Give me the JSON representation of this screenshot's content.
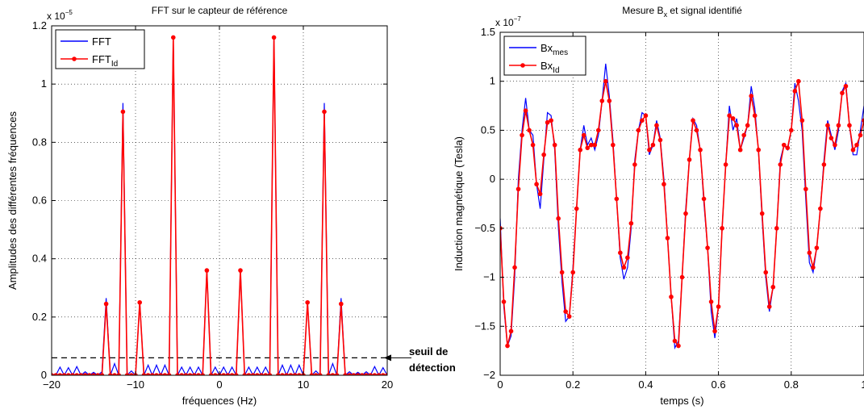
{
  "chart_data": [
    {
      "type": "line",
      "title": "FFT sur le capteur de référence",
      "xlabel": "fréquences (Hz)",
      "ylabel": "Amplitudes des différentes fréquences",
      "exponent_base": "x 10",
      "exponent_power": "−5",
      "xlim": [
        -20,
        20
      ],
      "ylim": [
        0,
        1.2
      ],
      "xticks": [
        -20,
        -10,
        0,
        10,
        20
      ],
      "xtick_labels": [
        "−20",
        "−10",
        "0",
        "10",
        "20"
      ],
      "yticks": [
        0,
        0.2,
        0.4,
        0.6,
        0.8,
        1,
        1.2
      ],
      "ytick_labels": [
        "0",
        "0.2",
        "0.4",
        "0.6",
        "0.8",
        "1",
        "1.2"
      ],
      "grid": true,
      "legend_position": "top-left",
      "threshold": {
        "y": 0.06,
        "label_line1": "seuil de",
        "label_line2": "détection"
      },
      "series": [
        {
          "name": "FFT",
          "color": "#0000ff",
          "marker": "none",
          "x": [
            -20,
            -19.5,
            -19,
            -18.5,
            -18,
            -17.5,
            -17,
            -16.5,
            -16,
            -15.5,
            -15,
            -14.5,
            -14,
            -13.5,
            -13,
            -12.5,
            -12,
            -11.5,
            -11,
            -10.5,
            -10,
            -9.5,
            -9,
            -8.5,
            -8,
            -7.5,
            -7,
            -6.5,
            -6,
            -5.5,
            -5,
            -4.5,
            -4,
            -3.5,
            -3,
            -2.5,
            -2,
            -1.5,
            -1,
            -0.5,
            0,
            0.5,
            1,
            1.5,
            2,
            2.5,
            3,
            3.5,
            4,
            4.5,
            5,
            5.5,
            6,
            6.5,
            7,
            7.5,
            8,
            8.5,
            9,
            9.5,
            10,
            10.5,
            11,
            11.5,
            12,
            12.5,
            13,
            13.5,
            14,
            14.5,
            15,
            15.5,
            16,
            16.5,
            17,
            17.5,
            18,
            18.5,
            19,
            19.5,
            20
          ],
          "y": [
            0.005,
            0,
            0.028,
            0,
            0.026,
            0,
            0.03,
            0,
            0.012,
            0,
            0.01,
            0,
            0.012,
            0.265,
            0,
            0.04,
            0,
            0.935,
            0,
            0.015,
            0,
            0.25,
            0,
            0.035,
            0,
            0.035,
            0,
            0.035,
            0,
            1.16,
            0,
            0.028,
            0,
            0.028,
            0,
            0.028,
            0,
            0.36,
            0,
            0.028,
            0,
            0.028,
            0,
            0.028,
            0,
            0.36,
            0,
            0.028,
            0,
            0.028,
            0,
            0.028,
            0,
            1.16,
            0,
            0.035,
            0,
            0.035,
            0,
            0.035,
            0,
            0.25,
            0,
            0.015,
            0,
            0.935,
            0,
            0.04,
            0,
            0.265,
            0,
            0.012,
            0,
            0.01,
            0,
            0.012,
            0,
            0.03,
            0,
            0.026,
            0
          ]
        },
        {
          "name": "FFT",
          "name_sub": "Id",
          "color": "#ff0000",
          "marker": "dot",
          "x": [
            -20,
            -19.5,
            -19,
            -18.5,
            -18,
            -17.5,
            -17,
            -16.5,
            -16,
            -15.5,
            -15,
            -14.5,
            -14,
            -13.5,
            -13,
            -12.5,
            -12,
            -11.5,
            -11,
            -10.5,
            -10,
            -9.5,
            -9,
            -8.5,
            -8,
            -7.5,
            -7,
            -6.5,
            -6,
            -5.5,
            -5,
            -4.5,
            -4,
            -3.5,
            -3,
            -2.5,
            -2,
            -1.5,
            -1,
            -0.5,
            0,
            0.5,
            1,
            1.5,
            2,
            2.5,
            3,
            3.5,
            4,
            4.5,
            5,
            5.5,
            6,
            6.5,
            7,
            7.5,
            8,
            8.5,
            9,
            9.5,
            10,
            10.5,
            11,
            11.5,
            12,
            12.5,
            13,
            13.5,
            14,
            14.5,
            15,
            15.5,
            16,
            16.5,
            17,
            17.5,
            18,
            18.5,
            19,
            19.5,
            20
          ],
          "y": [
            0,
            0,
            0,
            0,
            0,
            0,
            0,
            0,
            0,
            0,
            0,
            0,
            0,
            0.245,
            0,
            0,
            0,
            0.905,
            0,
            0,
            0,
            0.25,
            0,
            0,
            0,
            0,
            0,
            0,
            0,
            1.16,
            0,
            0,
            0,
            0,
            0,
            0,
            0,
            0.36,
            0,
            0,
            0,
            0,
            0,
            0,
            0,
            0.36,
            0,
            0,
            0,
            0,
            0,
            0,
            0,
            1.16,
            0,
            0,
            0,
            0,
            0,
            0,
            0,
            0.25,
            0,
            0,
            0,
            0.905,
            0,
            0,
            0,
            0.245,
            0,
            0,
            0,
            0,
            0,
            0,
            0,
            0,
            0,
            0,
            0
          ]
        }
      ]
    },
    {
      "type": "line",
      "title": "Mesure B",
      "title_sub": "x",
      "title_rest": " et signal identifié",
      "xlabel": "temps (s)",
      "ylabel": "Induction magnétique (Tesla)",
      "exponent_base": "x 10",
      "exponent_power": "−7",
      "xlim": [
        0,
        1
      ],
      "ylim": [
        -2,
        1.5
      ],
      "xticks": [
        0,
        0.2,
        0.4,
        0.6,
        0.8,
        1
      ],
      "xtick_labels": [
        "0",
        "0.2",
        "0.4",
        "0.6",
        "0.8",
        "1"
      ],
      "yticks": [
        -2,
        -1.5,
        -1,
        -0.5,
        0,
        0.5,
        1,
        1.5
      ],
      "ytick_labels": [
        "−2",
        "−1.5",
        "−1",
        "−0.5",
        "0",
        "0.5",
        "1",
        "1.5"
      ],
      "grid": true,
      "legend_position": "top-left",
      "series": [
        {
          "name": "Bx",
          "name_sub": "mes",
          "color": "#0000ff",
          "marker": "none",
          "x": [
            0,
            0.01,
            0.02,
            0.03,
            0.04,
            0.05,
            0.06,
            0.07,
            0.08,
            0.09,
            0.1,
            0.11,
            0.12,
            0.13,
            0.14,
            0.15,
            0.16,
            0.17,
            0.18,
            0.19,
            0.2,
            0.21,
            0.22,
            0.23,
            0.24,
            0.25,
            0.26,
            0.27,
            0.28,
            0.29,
            0.3,
            0.31,
            0.32,
            0.33,
            0.34,
            0.35,
            0.36,
            0.37,
            0.38,
            0.39,
            0.4,
            0.41,
            0.42,
            0.43,
            0.44,
            0.45,
            0.46,
            0.47,
            0.48,
            0.49,
            0.5,
            0.51,
            0.52,
            0.53,
            0.54,
            0.55,
            0.56,
            0.57,
            0.58,
            0.59,
            0.6,
            0.61,
            0.62,
            0.63,
            0.64,
            0.65,
            0.66,
            0.67,
            0.68,
            0.69,
            0.7,
            0.71,
            0.72,
            0.73,
            0.74,
            0.75,
            0.76,
            0.77,
            0.78,
            0.79,
            0.8,
            0.81,
            0.82,
            0.83,
            0.84,
            0.85,
            0.86,
            0.87,
            0.88,
            0.89,
            0.9,
            0.91,
            0.92,
            0.93,
            0.94,
            0.95,
            0.96,
            0.97,
            0.98,
            0.99,
            1
          ],
          "y": [
            -0.4,
            -1.3,
            -1.7,
            -1.6,
            -1.0,
            0.0,
            0.5,
            0.83,
            0.5,
            0.45,
            -0.05,
            -0.3,
            0.2,
            0.68,
            0.65,
            0.3,
            -0.5,
            -1.05,
            -1.45,
            -1.4,
            -0.9,
            -0.3,
            0.3,
            0.55,
            0.35,
            0.42,
            0.3,
            0.45,
            0.8,
            1.18,
            0.85,
            0.4,
            -0.2,
            -0.8,
            -1.02,
            -0.9,
            -0.5,
            0.2,
            0.5,
            0.68,
            0.65,
            0.25,
            0.35,
            0.6,
            0.42,
            0.0,
            -0.6,
            -1.2,
            -1.72,
            -1.65,
            -1.0,
            -0.3,
            0.2,
            0.62,
            0.55,
            0.3,
            -0.25,
            -0.7,
            -1.35,
            -1.62,
            -1.3,
            -0.5,
            0.15,
            0.75,
            0.5,
            0.62,
            0.3,
            0.42,
            0.55,
            0.95,
            0.72,
            0.28,
            -0.4,
            -1.0,
            -1.35,
            -1.1,
            -0.5,
            0.2,
            0.35,
            0.3,
            0.5,
            0.98,
            0.8,
            0.5,
            -0.2,
            -0.85,
            -0.95,
            -0.7,
            -0.3,
            0.2,
            0.6,
            0.45,
            0.3,
            0.5,
            0.9,
            0.98,
            0.55,
            0.25,
            0.25,
            0.5,
            0.75
          ]
        },
        {
          "name": "Bx",
          "name_sub": "Id",
          "color": "#ff0000",
          "marker": "dot",
          "x": [
            0,
            0.01,
            0.02,
            0.03,
            0.04,
            0.05,
            0.06,
            0.07,
            0.08,
            0.09,
            0.1,
            0.11,
            0.12,
            0.13,
            0.14,
            0.15,
            0.16,
            0.17,
            0.18,
            0.19,
            0.2,
            0.21,
            0.22,
            0.23,
            0.24,
            0.25,
            0.26,
            0.27,
            0.28,
            0.29,
            0.3,
            0.31,
            0.32,
            0.33,
            0.34,
            0.35,
            0.36,
            0.37,
            0.38,
            0.39,
            0.4,
            0.41,
            0.42,
            0.43,
            0.44,
            0.45,
            0.46,
            0.47,
            0.48,
            0.49,
            0.5,
            0.51,
            0.52,
            0.53,
            0.54,
            0.55,
            0.56,
            0.57,
            0.58,
            0.59,
            0.6,
            0.61,
            0.62,
            0.63,
            0.64,
            0.65,
            0.66,
            0.67,
            0.68,
            0.69,
            0.7,
            0.71,
            0.72,
            0.73,
            0.74,
            0.75,
            0.76,
            0.77,
            0.78,
            0.79,
            0.8,
            0.81,
            0.82,
            0.83,
            0.84,
            0.85,
            0.86,
            0.87,
            0.88,
            0.89,
            0.9,
            0.91,
            0.92,
            0.93,
            0.94,
            0.95,
            0.96,
            0.97,
            0.98,
            0.99,
            1
          ],
          "y": [
            -0.5,
            -1.25,
            -1.7,
            -1.55,
            -0.9,
            -0.1,
            0.45,
            0.7,
            0.5,
            0.35,
            -0.05,
            -0.15,
            0.25,
            0.58,
            0.6,
            0.35,
            -0.4,
            -0.95,
            -1.35,
            -1.4,
            -0.95,
            -0.3,
            0.3,
            0.45,
            0.32,
            0.35,
            0.35,
            0.5,
            0.8,
            1.0,
            0.8,
            0.35,
            -0.2,
            -0.75,
            -0.9,
            -0.8,
            -0.45,
            0.15,
            0.5,
            0.6,
            0.65,
            0.3,
            0.35,
            0.55,
            0.4,
            -0.05,
            -0.6,
            -1.2,
            -1.65,
            -1.7,
            -1.0,
            -0.35,
            0.2,
            0.6,
            0.5,
            0.3,
            -0.2,
            -0.7,
            -1.25,
            -1.55,
            -1.3,
            -0.5,
            0.15,
            0.65,
            0.62,
            0.55,
            0.3,
            0.45,
            0.55,
            0.85,
            0.65,
            0.3,
            -0.35,
            -0.95,
            -1.3,
            -1.1,
            -0.5,
            0.15,
            0.35,
            0.32,
            0.5,
            0.9,
            1.0,
            0.6,
            -0.1,
            -0.75,
            -0.9,
            -0.7,
            -0.3,
            0.15,
            0.55,
            0.42,
            0.35,
            0.55,
            0.88,
            0.95,
            0.55,
            0.3,
            0.35,
            0.45,
            0.6
          ]
        }
      ]
    }
  ]
}
